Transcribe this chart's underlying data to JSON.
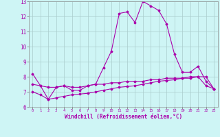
{
  "xlabel": "Windchill (Refroidissement éolien,°C)",
  "background_color": "#cef5f5",
  "grid_color": "#aacccc",
  "line_color": "#aa00aa",
  "xlim": [
    -0.5,
    23.5
  ],
  "ylim": [
    6,
    13
  ],
  "yticks": [
    6,
    7,
    8,
    9,
    10,
    11,
    12,
    13
  ],
  "xticks": [
    0,
    1,
    2,
    3,
    4,
    5,
    6,
    7,
    8,
    9,
    10,
    11,
    12,
    13,
    14,
    15,
    16,
    17,
    18,
    19,
    20,
    21,
    22,
    23
  ],
  "series1_x": [
    0,
    1,
    2,
    3,
    4,
    5,
    6,
    7,
    8,
    9,
    10,
    11,
    12,
    13,
    14,
    15,
    16,
    17,
    18,
    19,
    20,
    21,
    22,
    23
  ],
  "series1_y": [
    8.2,
    7.4,
    6.5,
    7.3,
    7.4,
    7.1,
    7.1,
    7.4,
    7.5,
    8.6,
    9.7,
    12.2,
    12.3,
    11.6,
    13.0,
    12.7,
    12.4,
    11.5,
    9.5,
    8.3,
    8.3,
    8.7,
    7.7,
    7.2
  ],
  "series2_x": [
    0,
    1,
    2,
    3,
    4,
    5,
    6,
    7,
    8,
    9,
    10,
    11,
    12,
    13,
    14,
    15,
    16,
    17,
    18,
    19,
    20,
    21,
    22,
    23
  ],
  "series2_y": [
    7.5,
    7.4,
    7.3,
    7.3,
    7.4,
    7.3,
    7.3,
    7.4,
    7.5,
    7.5,
    7.6,
    7.6,
    7.7,
    7.7,
    7.7,
    7.8,
    7.8,
    7.9,
    7.9,
    7.9,
    8.0,
    8.0,
    8.0,
    7.2
  ],
  "series3_x": [
    0,
    1,
    2,
    3,
    4,
    5,
    6,
    7,
    8,
    9,
    10,
    11,
    12,
    13,
    14,
    15,
    16,
    17,
    18,
    19,
    20,
    21,
    22,
    23
  ],
  "series3_y": [
    7.0,
    6.8,
    6.5,
    6.6,
    6.7,
    6.8,
    6.85,
    6.9,
    7.0,
    7.1,
    7.2,
    7.3,
    7.35,
    7.4,
    7.5,
    7.6,
    7.7,
    7.75,
    7.8,
    7.9,
    7.9,
    8.0,
    7.4,
    7.2
  ]
}
